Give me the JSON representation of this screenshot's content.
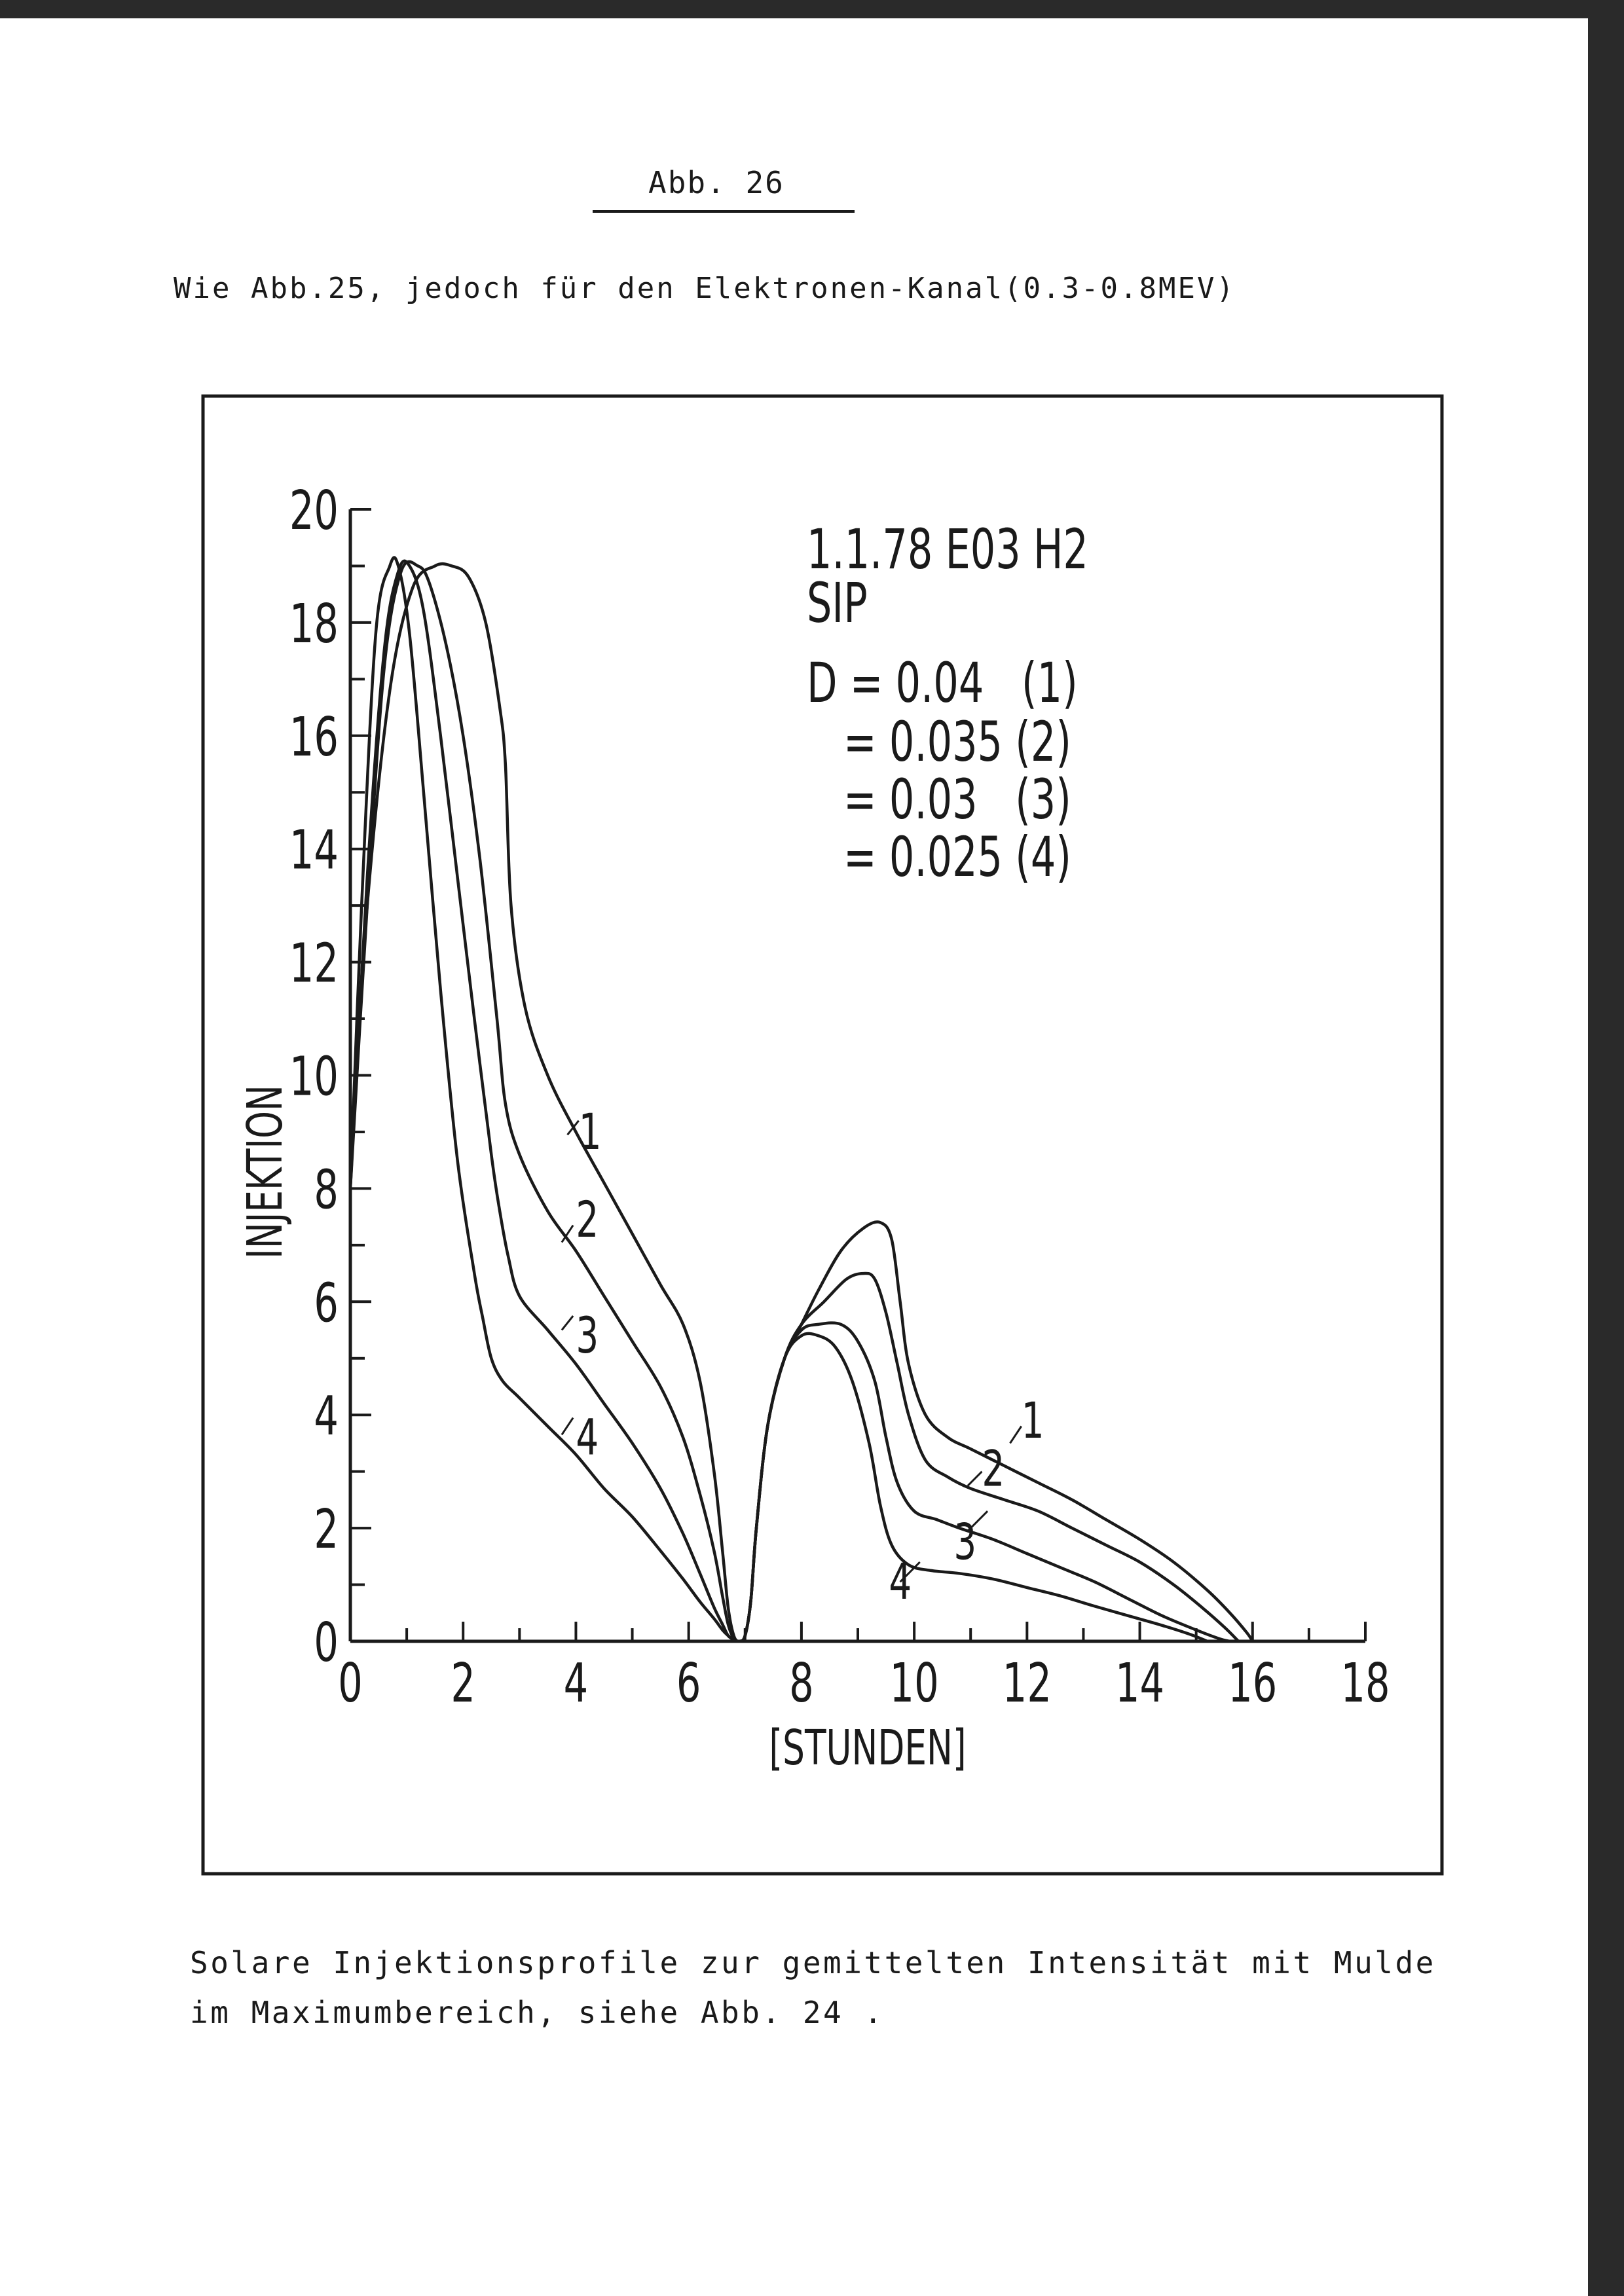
{
  "page": {
    "figure_label": "Abb. 26",
    "subtitle": "Wie Abb.25, jedoch für den Elektronen-Kanal(0.3-0.8MEV)",
    "caption_lines": [
      "Solare Injektionsprofile zur gemittelten Intensität mit Mulde",
      "im Maximumbereich, siehe Abb. 24 ."
    ]
  },
  "chart_data": {
    "type": "line",
    "title_lines": [
      "1.1.78  E03  H2",
      "SIP"
    ],
    "legend_lines": [
      "D = 0.04   (1)",
      "= 0.035 (2)",
      "= 0.03   (3)",
      "= 0.025 (4)"
    ],
    "xlabel": "[STUNDEN]",
    "ylabel": "INJEKTION",
    "xlim": [
      0,
      18
    ],
    "ylim": [
      0,
      20
    ],
    "xticks": [
      0,
      2,
      4,
      6,
      8,
      10,
      12,
      14,
      16,
      18
    ],
    "yticks": [
      0,
      2,
      4,
      6,
      8,
      10,
      12,
      14,
      16,
      18,
      20
    ],
    "grid": false,
    "series": [
      {
        "name": "1",
        "D": 0.04,
        "x": [
          0,
          0.3,
          0.7,
          1.1,
          1.5,
          1.8,
          2.1,
          2.4,
          2.65,
          2.75,
          2.85,
          3.1,
          3.5,
          4.0,
          4.5,
          5.0,
          5.5,
          5.9,
          6.2,
          6.45,
          6.6,
          6.7,
          6.8,
          6.9,
          7.0,
          7.1,
          7.2,
          7.4,
          7.7,
          8.0,
          8.3,
          8.7,
          9.1,
          9.4,
          9.6,
          9.75,
          9.9,
          10.2,
          10.6,
          11.0,
          11.6,
          12.2,
          12.8,
          13.4,
          14.0,
          14.6,
          15.2,
          15.6,
          15.9,
          16.0
        ],
        "y": [
          8.5,
          13,
          16.8,
          18.6,
          19.0,
          19.0,
          18.8,
          18.0,
          16.5,
          15.5,
          13.0,
          11.2,
          10.0,
          9.0,
          8.1,
          7.2,
          6.3,
          5.6,
          4.6,
          3.0,
          1.6,
          0.6,
          0.1,
          0,
          0.1,
          0.7,
          2.0,
          3.8,
          5.0,
          5.6,
          6.2,
          6.9,
          7.3,
          7.4,
          7.1,
          6.0,
          4.9,
          4.0,
          3.6,
          3.4,
          3.1,
          2.8,
          2.5,
          2.15,
          1.8,
          1.4,
          0.9,
          0.5,
          0.15,
          0
        ]
      },
      {
        "name": "2",
        "D": 0.035,
        "x": [
          0,
          0.3,
          0.6,
          0.9,
          1.2,
          1.4,
          1.7,
          2.0,
          2.3,
          2.6,
          2.75,
          3.0,
          3.5,
          4.0,
          4.5,
          5.0,
          5.5,
          5.9,
          6.2,
          6.45,
          6.6,
          6.7,
          6.8,
          6.9,
          7.0,
          7.1,
          7.2,
          7.4,
          7.7,
          8.0,
          8.4,
          8.8,
          9.1,
          9.3,
          9.5,
          9.7,
          9.9,
          10.2,
          10.6,
          11.0,
          11.6,
          12.2,
          12.8,
          13.4,
          14.0,
          14.6,
          15.1,
          15.5,
          15.75
        ],
        "y": [
          8.0,
          13,
          17.2,
          18.9,
          19.0,
          18.7,
          17.6,
          16.0,
          13.8,
          11.0,
          9.5,
          8.6,
          7.6,
          6.9,
          6.1,
          5.3,
          4.5,
          3.6,
          2.6,
          1.6,
          0.8,
          0.3,
          0.05,
          0,
          0.1,
          0.7,
          2.0,
          3.8,
          5.0,
          5.6,
          6.0,
          6.4,
          6.5,
          6.4,
          5.8,
          4.9,
          4.0,
          3.2,
          2.9,
          2.7,
          2.5,
          2.3,
          2.0,
          1.7,
          1.4,
          1.0,
          0.6,
          0.25,
          0
        ]
      },
      {
        "name": "3",
        "D": 0.03,
        "x": [
          0,
          0.3,
          0.6,
          0.85,
          1.05,
          1.3,
          1.6,
          1.9,
          2.2,
          2.5,
          2.65,
          2.8,
          3.0,
          3.5,
          4.0,
          4.5,
          5.0,
          5.5,
          5.9,
          6.2,
          6.45,
          6.6,
          6.7,
          6.8,
          6.9,
          7.0,
          7.1,
          7.2,
          7.4,
          7.7,
          8.0,
          8.3,
          8.7,
          9.0,
          9.3,
          9.5,
          9.7,
          10.0,
          10.4,
          10.8,
          11.4,
          12.0,
          12.6,
          13.2,
          13.8,
          14.4,
          15.0,
          15.4,
          15.6
        ],
        "y": [
          8.0,
          13.5,
          17.5,
          18.9,
          19.0,
          18.2,
          16.0,
          13.5,
          11.0,
          8.6,
          7.6,
          6.8,
          6.1,
          5.5,
          4.9,
          4.2,
          3.5,
          2.7,
          1.9,
          1.2,
          0.6,
          0.3,
          0.1,
          0.03,
          0,
          0.1,
          0.7,
          2.0,
          3.8,
          5.0,
          5.5,
          5.6,
          5.6,
          5.3,
          4.6,
          3.6,
          2.8,
          2.3,
          2.15,
          2.0,
          1.8,
          1.55,
          1.3,
          1.05,
          0.75,
          0.45,
          0.2,
          0.05,
          0
        ]
      },
      {
        "name": "4",
        "D": 0.025,
        "x": [
          0,
          0.2,
          0.45,
          0.7,
          0.85,
          1.05,
          1.3,
          1.6,
          1.9,
          2.2,
          2.35,
          2.5,
          2.7,
          3.0,
          3.5,
          4.0,
          4.5,
          5.0,
          5.5,
          5.9,
          6.2,
          6.45,
          6.6,
          6.7,
          6.8,
          6.9,
          7.0,
          7.1,
          7.2,
          7.4,
          7.7,
          8.0,
          8.3,
          8.6,
          8.9,
          9.2,
          9.4,
          9.6,
          9.9,
          10.3,
          10.8,
          11.4,
          12.0,
          12.6,
          13.2,
          13.8,
          14.4,
          14.9,
          15.2
        ],
        "y": [
          8.0,
          13,
          17.8,
          19.0,
          19.0,
          17.8,
          15.0,
          11.5,
          8.5,
          6.5,
          5.7,
          5.0,
          4.6,
          4.3,
          3.8,
          3.3,
          2.7,
          2.2,
          1.6,
          1.1,
          0.7,
          0.4,
          0.2,
          0.1,
          0.03,
          0,
          0.1,
          0.7,
          2.0,
          3.8,
          5.0,
          5.4,
          5.4,
          5.2,
          4.6,
          3.5,
          2.4,
          1.7,
          1.35,
          1.25,
          1.2,
          1.1,
          0.95,
          0.8,
          0.62,
          0.45,
          0.28,
          0.12,
          0
        ]
      }
    ],
    "curve_labels_left": [
      "1",
      "2",
      "3",
      "4"
    ],
    "curve_labels_right": [
      "1",
      "2",
      "3",
      "4"
    ]
  }
}
